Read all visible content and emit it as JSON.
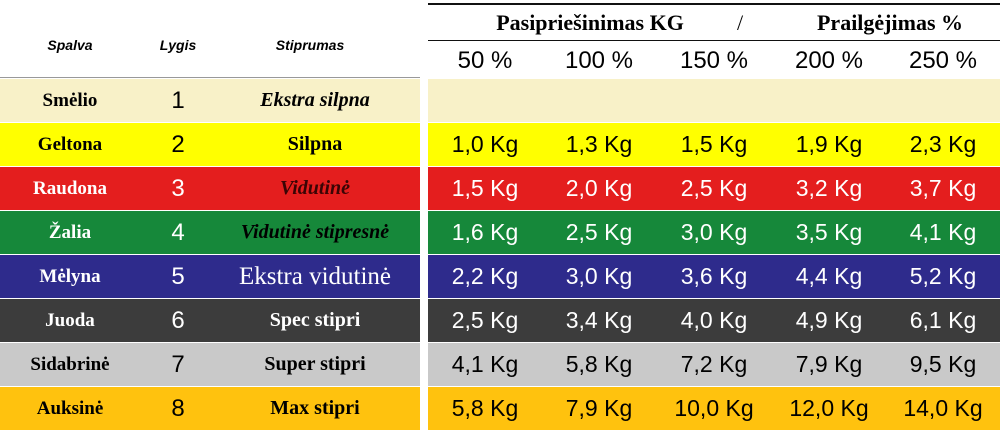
{
  "header": {
    "columns": [
      "Spalva",
      "Lygis",
      "Stiprumas"
    ],
    "group_left": "Pasipriešinimas KG",
    "separator": "/",
    "group_right": "Prailgėjimas %",
    "percents": [
      "50 %",
      "100 %",
      "150 %",
      "200 %",
      "250 %"
    ]
  },
  "rows": [
    {
      "name": "Smėlio",
      "level": "1",
      "strength": "Ekstra silpna",
      "values": []
    },
    {
      "name": "Geltona",
      "level": "2",
      "strength": "Silpna",
      "values": [
        "1,0 Kg",
        "1,3 Kg",
        "1,5 Kg",
        "1,9 Kg",
        "2,3 Kg"
      ]
    },
    {
      "name": "Raudona",
      "level": "3",
      "strength": "Vidutinė",
      "values": [
        "1,5 Kg",
        "2,0 Kg",
        "2,5 Kg",
        "3,2 Kg",
        "3,7 Kg"
      ]
    },
    {
      "name": "Žalia",
      "level": "4",
      "strength": "Vidutinė stipresnė",
      "values": [
        "1,6 Kg",
        "2,5 Kg",
        "3,0 Kg",
        "3,5 Kg",
        "4,1 Kg"
      ]
    },
    {
      "name": "Mėlyna",
      "level": "5",
      "strength": "Ekstra vidutinė",
      "values": [
        "2,2 Kg",
        "3,0 Kg",
        "3,6 Kg",
        "4,4 Kg",
        "5,2 Kg"
      ]
    },
    {
      "name": "Juoda",
      "level": "6",
      "strength": "Spec stipri",
      "values": [
        "2,5 Kg",
        "3,4 Kg",
        "4,0 Kg",
        "4,9 Kg",
        "6,1 Kg"
      ]
    },
    {
      "name": "Sidabrinė",
      "level": "7",
      "strength": "Super stipri",
      "values": [
        "4,1 Kg",
        "5,8 Kg",
        "7,2 Kg",
        "7,9 Kg",
        "9,5 Kg"
      ]
    },
    {
      "name": "Auksinė",
      "level": "8",
      "strength": "Max stipri",
      "values": [
        "5,8 Kg",
        "7,9 Kg",
        "10,0 Kg",
        "12,0 Kg",
        "14,0 Kg"
      ]
    }
  ]
}
